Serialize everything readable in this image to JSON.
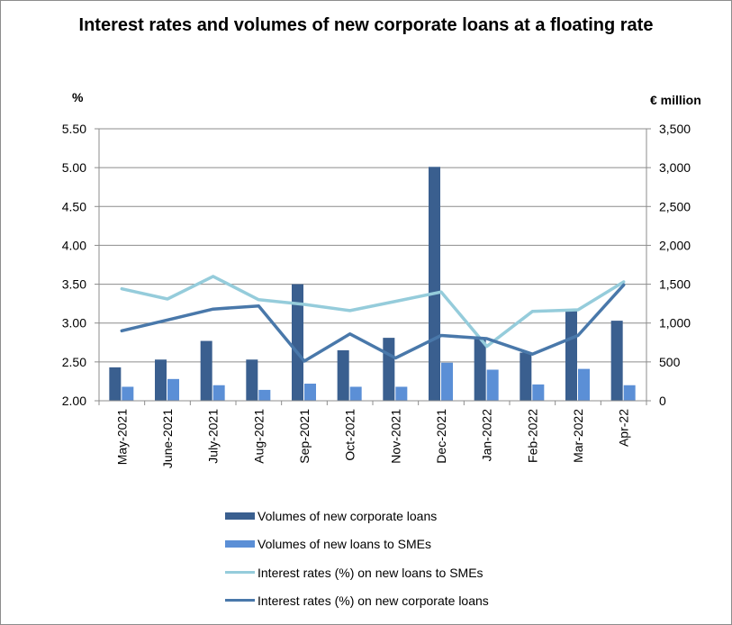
{
  "colors": {
    "corporate_volume": "#3A5F8F",
    "sme_volume": "#5B8FD6",
    "sme_rate": "#95CCDB",
    "corporate_rate": "#4978AA"
  },
  "chart_data": {
    "type": "bar",
    "title": "Interest rates and volumes of new corporate loans at a floating rate",
    "ylabel_left": "%",
    "ylabel_right": "€ million",
    "categories": [
      "May-2021",
      "June-2021",
      "July-2021",
      "Aug-2021",
      "Sep-2021",
      "Oct-2021",
      "Nov-2021",
      "Dec-2021",
      "Jan-2022",
      "Feb-2022",
      "Mar-2022",
      "Apr-22"
    ],
    "ylim_left": [
      2.0,
      5.5
    ],
    "ylim_right": [
      0,
      3500
    ],
    "yticks_left": [
      "2.00",
      "2.50",
      "3.00",
      "3.50",
      "4.00",
      "4.50",
      "5.00",
      "5.50"
    ],
    "yticks_right": [
      "0",
      "500",
      "1,000",
      "1,500",
      "2,000",
      "2,500",
      "3,000",
      "3,500"
    ],
    "grid": true,
    "legend_position": "bottom",
    "series": [
      {
        "name": "Volumes of new corporate loans",
        "type": "bar",
        "axis": "right",
        "values": [
          430,
          530,
          770,
          530,
          1500,
          650,
          810,
          3010,
          810,
          620,
          1160,
          1030
        ]
      },
      {
        "name": "Volumes of new loans to SMEs",
        "type": "bar",
        "axis": "right",
        "values": [
          180,
          280,
          200,
          140,
          220,
          180,
          180,
          490,
          400,
          210,
          410,
          200
        ]
      },
      {
        "name": "Interest rates (%) on new loans to SMEs",
        "type": "line",
        "axis": "left",
        "values": [
          3.44,
          3.31,
          3.6,
          3.3,
          3.24,
          3.16,
          3.28,
          3.4,
          2.7,
          3.15,
          3.17,
          3.53
        ]
      },
      {
        "name": "Interest rates (%) on new corporate loans",
        "type": "line",
        "axis": "left",
        "values": [
          2.9,
          3.04,
          3.18,
          3.22,
          2.51,
          2.86,
          2.55,
          2.84,
          2.8,
          2.6,
          2.84,
          3.49
        ]
      }
    ]
  }
}
